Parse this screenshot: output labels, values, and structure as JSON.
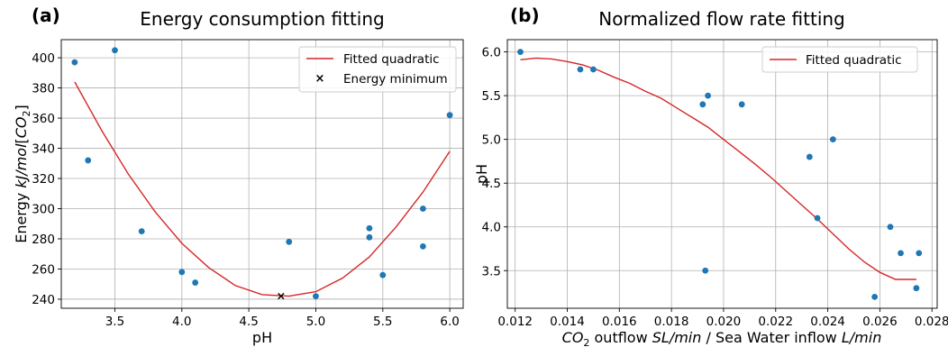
{
  "chart_data": [
    {
      "type": "scatter",
      "panel_label": "(a)",
      "title": "Energy consumption fitting",
      "xlabel": "pH",
      "ylabel": {
        "prefix": "Energy ",
        "italic": "kJ/mol",
        "suffix": "[",
        "sub_italic": "CO",
        "sub": "2",
        "close": "]"
      },
      "xlim": [
        3.1,
        6.1
      ],
      "ylim": [
        234,
        412
      ],
      "x_ticks": [
        "3.5",
        "4.0",
        "4.5",
        "5.0",
        "5.5",
        "6.0"
      ],
      "x_tick_values": [
        3.5,
        4.0,
        4.5,
        5.0,
        5.5,
        6.0
      ],
      "y_ticks": [
        "240",
        "260",
        "280",
        "300",
        "320",
        "340",
        "360",
        "380",
        "400"
      ],
      "y_tick_values": [
        240,
        260,
        280,
        300,
        320,
        340,
        360,
        380,
        400
      ],
      "grid": true,
      "legend_position": "top-right",
      "series": [
        {
          "name": "",
          "kind": "points",
          "color": "#1f77b4",
          "points": [
            [
              3.2,
              397
            ],
            [
              3.3,
              332
            ],
            [
              3.5,
              405
            ],
            [
              3.7,
              285
            ],
            [
              4.0,
              258
            ],
            [
              4.1,
              251
            ],
            [
              4.8,
              278
            ],
            [
              5.0,
              242
            ],
            [
              5.4,
              287
            ],
            [
              5.4,
              281
            ],
            [
              5.5,
              256
            ],
            [
              5.8,
              300
            ],
            [
              5.8,
              275
            ],
            [
              6.0,
              362
            ]
          ]
        },
        {
          "name": "Fitted quadratic",
          "kind": "line",
          "color": "#d62728",
          "points": [
            [
              3.2,
              384
            ],
            [
              3.4,
              352
            ],
            [
              3.6,
              323
            ],
            [
              3.8,
              298
            ],
            [
              4.0,
              277
            ],
            [
              4.2,
              261
            ],
            [
              4.4,
              249
            ],
            [
              4.6,
              243
            ],
            [
              4.8,
              242
            ],
            [
              5.0,
              245
            ],
            [
              5.2,
              254
            ],
            [
              5.4,
              268
            ],
            [
              5.6,
              288
            ],
            [
              5.8,
              311
            ],
            [
              6.0,
              338
            ]
          ]
        },
        {
          "name": "Energy minimum",
          "kind": "marker",
          "color": "#000000",
          "points": [
            [
              4.74,
              242
            ]
          ]
        }
      ]
    },
    {
      "type": "scatter",
      "panel_label": "(b)",
      "title": "Normalized flow rate fitting",
      "xlabel": {
        "sub_italic": "CO",
        "sub": "2",
        "part1": " outflow ",
        "italic1": "SL/min",
        "part2": " / Sea Water inflow ",
        "italic2": "L/min"
      },
      "ylabel": "pH",
      "xlim": [
        0.0117,
        0.0282
      ],
      "ylim": [
        3.07,
        6.14
      ],
      "x_ticks": [
        "0.012",
        "0.014",
        "0.016",
        "0.018",
        "0.020",
        "0.022",
        "0.024",
        "0.026",
        "0.028"
      ],
      "x_tick_values": [
        0.012,
        0.014,
        0.016,
        0.018,
        0.02,
        0.022,
        0.024,
        0.026,
        0.028
      ],
      "y_ticks": [
        "3.5",
        "4.0",
        "4.5",
        "5.0",
        "5.5",
        "6.0"
      ],
      "y_tick_values": [
        3.5,
        4.0,
        4.5,
        5.0,
        5.5,
        6.0
      ],
      "grid": true,
      "legend_position": "top-right",
      "series": [
        {
          "name": "",
          "kind": "points",
          "color": "#1f77b4",
          "points": [
            [
              0.0122,
              6.0
            ],
            [
              0.0145,
              5.8
            ],
            [
              0.015,
              5.8
            ],
            [
              0.0192,
              5.4
            ],
            [
              0.0194,
              5.5
            ],
            [
              0.0193,
              3.5
            ],
            [
              0.0207,
              5.4
            ],
            [
              0.0233,
              4.8
            ],
            [
              0.0236,
              4.1
            ],
            [
              0.0242,
              5.0
            ],
            [
              0.0258,
              3.2
            ],
            [
              0.0264,
              4.0
            ],
            [
              0.0268,
              3.7
            ],
            [
              0.0274,
              3.3
            ],
            [
              0.0275,
              3.7
            ]
          ]
        },
        {
          "name": "Fitted quadratic",
          "kind": "line",
          "color": "#d62728",
          "points": [
            [
              0.0122,
              5.91
            ],
            [
              0.0128,
              5.93
            ],
            [
              0.0134,
              5.92
            ],
            [
              0.014,
              5.89
            ],
            [
              0.0146,
              5.85
            ],
            [
              0.0152,
              5.79
            ],
            [
              0.0158,
              5.71
            ],
            [
              0.0164,
              5.64
            ],
            [
              0.017,
              5.55
            ],
            [
              0.0176,
              5.47
            ],
            [
              0.0182,
              5.36
            ],
            [
              0.0188,
              5.25
            ],
            [
              0.0194,
              5.14
            ],
            [
              0.02,
              5.0
            ],
            [
              0.0206,
              4.86
            ],
            [
              0.0212,
              4.72
            ],
            [
              0.0218,
              4.57
            ],
            [
              0.0224,
              4.41
            ],
            [
              0.023,
              4.25
            ],
            [
              0.0236,
              4.09
            ],
            [
              0.0242,
              3.92
            ],
            [
              0.0248,
              3.75
            ],
            [
              0.0254,
              3.6
            ],
            [
              0.026,
              3.48
            ],
            [
              0.0266,
              3.4
            ],
            [
              0.0274,
              3.4
            ]
          ]
        }
      ]
    }
  ]
}
